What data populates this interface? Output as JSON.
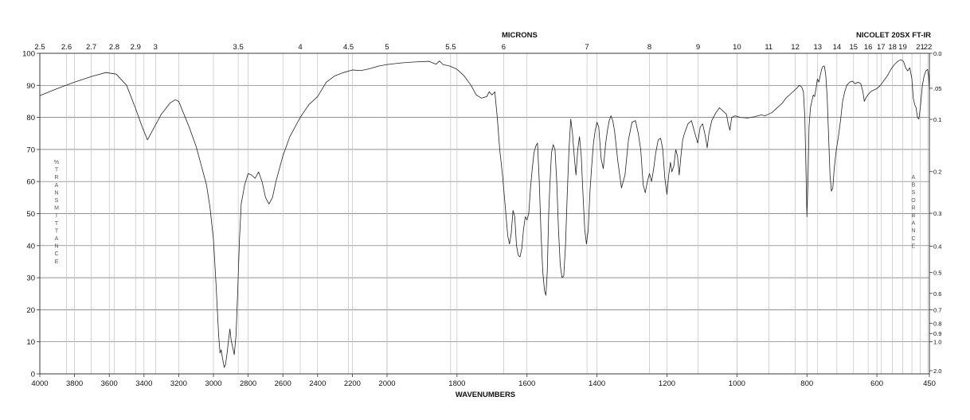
{
  "chart_data": {
    "type": "line",
    "instrument": "NICOLET 20SX FT-IR",
    "xlabel": "WAVENUMBERS",
    "xlabel_top": "MICRONS",
    "ylabel_left": "% TRANSMITTANCE",
    "ylabel_left_letters": [
      "%",
      "T",
      "R",
      "A",
      "N",
      "S",
      "M",
      "I",
      "T",
      "T",
      "A",
      "N",
      "C",
      "E"
    ],
    "ylabel_right_letters": [
      "A",
      "B",
      "S",
      "O",
      "R",
      "B",
      "A",
      "N",
      "C",
      "E"
    ],
    "xlim": [
      4000,
      450
    ],
    "ylim": [
      0,
      100
    ],
    "x_scale": "two-segment linear (4000-2000 and 2000-450 cm-1)",
    "grid": true,
    "x_ticks": [
      "4000",
      "3800",
      "3600",
      "3400",
      "3200",
      "3000",
      "2800",
      "2600",
      "2400",
      "2200",
      "2000",
      "1800",
      "1600",
      "1400",
      "1200",
      "1000",
      "800",
      "600",
      "450"
    ],
    "y_ticks": [
      "0",
      "10",
      "20",
      "30",
      "40",
      "50",
      "60",
      "70",
      "80",
      "90",
      "100"
    ],
    "micron_ticks": [
      {
        "label": "2.5",
        "um": 2.5
      },
      {
        "label": "2.6",
        "um": 2.6
      },
      {
        "label": "2.7",
        "um": 2.7
      },
      {
        "label": "2.8",
        "um": 2.8
      },
      {
        "label": "2.9",
        "um": 2.9
      },
      {
        "label": "3",
        "um": 3.0
      },
      {
        "label": "3.5",
        "um": 3.5
      },
      {
        "label": "4",
        "um": 4.0
      },
      {
        "label": "4.5",
        "um": 4.5
      },
      {
        "label": "5",
        "um": 5.0
      },
      {
        "label": "5.5",
        "um": 5.5
      },
      {
        "label": "6",
        "um": 6.0
      },
      {
        "label": "7",
        "um": 7.0
      },
      {
        "label": "8",
        "um": 8.0
      },
      {
        "label": "9",
        "um": 9.0
      },
      {
        "label": "10",
        "um": 10.0
      },
      {
        "label": "11",
        "um": 11.0
      },
      {
        "label": "12",
        "um": 12.0
      },
      {
        "label": "13",
        "um": 13.0
      },
      {
        "label": "14",
        "um": 14.0
      },
      {
        "label": "15",
        "um": 15.0
      },
      {
        "label": "16",
        "um": 16.0
      },
      {
        "label": "17",
        "um": 17.0
      },
      {
        "label": "18",
        "um": 18.0
      },
      {
        "label": "19",
        "um": 19.0
      },
      {
        "label": "21",
        "um": 21.0
      },
      {
        "label": "22",
        "um": 22.0
      }
    ],
    "absorbance_ticks": [
      {
        "label": "0.0",
        "T": 100
      },
      {
        "label": ".05",
        "T": 89.1
      },
      {
        "label": "0.1",
        "T": 79.4
      },
      {
        "label": "0.2",
        "T": 63.1
      },
      {
        "label": "0.3",
        "T": 50.1
      },
      {
        "label": "0.4",
        "T": 39.8
      },
      {
        "label": "0.5",
        "T": 31.6
      },
      {
        "label": "0.6",
        "T": 25.1
      },
      {
        "label": "0.7",
        "T": 20.0
      },
      {
        "label": "0.8",
        "T": 15.8
      },
      {
        "label": "0.9",
        "T": 12.6
      },
      {
        "label": "1.0",
        "T": 10.0
      },
      {
        "label": "2.0",
        "T": 1.0
      }
    ],
    "series": [
      {
        "color": "#222222",
        "points": [
          [
            4000,
            86.8
          ],
          [
            3900,
            89
          ],
          [
            3800,
            91
          ],
          [
            3700,
            92.8
          ],
          [
            3620,
            94
          ],
          [
            3560,
            93.5
          ],
          [
            3500,
            90
          ],
          [
            3450,
            83
          ],
          [
            3410,
            77
          ],
          [
            3380,
            73
          ],
          [
            3350,
            76
          ],
          [
            3300,
            81
          ],
          [
            3250,
            84.5
          ],
          [
            3220,
            85.5
          ],
          [
            3200,
            85
          ],
          [
            3170,
            81
          ],
          [
            3140,
            77
          ],
          [
            3100,
            71
          ],
          [
            3070,
            65
          ],
          [
            3040,
            59
          ],
          [
            3020,
            52
          ],
          [
            3000,
            42
          ],
          [
            2985,
            28
          ],
          [
            2970,
            12
          ],
          [
            2962,
            6.5
          ],
          [
            2955,
            7.5
          ],
          [
            2948,
            5
          ],
          [
            2938,
            2
          ],
          [
            2930,
            3
          ],
          [
            2920,
            7
          ],
          [
            2912,
            11
          ],
          [
            2905,
            14
          ],
          [
            2898,
            10.5
          ],
          [
            2890,
            8.5
          ],
          [
            2880,
            6
          ],
          [
            2870,
            12
          ],
          [
            2860,
            26
          ],
          [
            2850,
            42
          ],
          [
            2840,
            53
          ],
          [
            2820,
            59
          ],
          [
            2800,
            62.5
          ],
          [
            2780,
            62
          ],
          [
            2760,
            61
          ],
          [
            2740,
            63
          ],
          [
            2720,
            60
          ],
          [
            2700,
            55
          ],
          [
            2680,
            53
          ],
          [
            2660,
            55
          ],
          [
            2640,
            60
          ],
          [
            2600,
            68
          ],
          [
            2560,
            74
          ],
          [
            2500,
            80
          ],
          [
            2450,
            84
          ],
          [
            2400,
            86.5
          ],
          [
            2350,
            91
          ],
          [
            2300,
            93
          ],
          [
            2250,
            94
          ],
          [
            2200,
            94.8
          ],
          [
            2150,
            94.6
          ],
          [
            2100,
            95.2
          ],
          [
            2050,
            96
          ],
          [
            2000,
            96.5
          ],
          [
            1960,
            97
          ],
          [
            1920,
            97.3
          ],
          [
            1880,
            97.5
          ],
          [
            1860,
            96.6
          ],
          [
            1850,
            97.6
          ],
          [
            1840,
            96.5
          ],
          [
            1820,
            96
          ],
          [
            1800,
            95
          ],
          [
            1780,
            93
          ],
          [
            1760,
            90
          ],
          [
            1745,
            87
          ],
          [
            1730,
            86
          ],
          [
            1715,
            86.5
          ],
          [
            1708,
            88
          ],
          [
            1700,
            87
          ],
          [
            1692,
            88
          ],
          [
            1685,
            80
          ],
          [
            1678,
            70
          ],
          [
            1670,
            62
          ],
          [
            1662,
            52
          ],
          [
            1655,
            43
          ],
          [
            1650,
            40.5
          ],
          [
            1645,
            44
          ],
          [
            1640,
            51
          ],
          [
            1635,
            49
          ],
          [
            1630,
            40
          ],
          [
            1625,
            37
          ],
          [
            1620,
            36.5
          ],
          [
            1615,
            39
          ],
          [
            1610,
            45
          ],
          [
            1605,
            49
          ],
          [
            1600,
            48
          ],
          [
            1595,
            50
          ],
          [
            1590,
            58
          ],
          [
            1585,
            64
          ],
          [
            1580,
            69
          ],
          [
            1575,
            71
          ],
          [
            1570,
            72
          ],
          [
            1565,
            60
          ],
          [
            1560,
            44
          ],
          [
            1555,
            32
          ],
          [
            1550,
            26
          ],
          [
            1546,
            24.5
          ],
          [
            1542,
            32
          ],
          [
            1538,
            50
          ],
          [
            1535,
            58
          ],
          [
            1530,
            69
          ],
          [
            1525,
            71.5
          ],
          [
            1520,
            70
          ],
          [
            1515,
            60
          ],
          [
            1510,
            45
          ],
          [
            1505,
            34
          ],
          [
            1500,
            30
          ],
          [
            1495,
            30.5
          ],
          [
            1490,
            40
          ],
          [
            1485,
            56
          ],
          [
            1480,
            70
          ],
          [
            1475,
            79.5
          ],
          [
            1470,
            75
          ],
          [
            1465,
            68
          ],
          [
            1460,
            62
          ],
          [
            1455,
            70
          ],
          [
            1450,
            74
          ],
          [
            1445,
            68
          ],
          [
            1440,
            56
          ],
          [
            1435,
            45
          ],
          [
            1430,
            40.5
          ],
          [
            1425,
            45
          ],
          [
            1420,
            57
          ],
          [
            1415,
            65
          ],
          [
            1410,
            72
          ],
          [
            1405,
            76
          ],
          [
            1400,
            78.5
          ],
          [
            1395,
            77
          ],
          [
            1388,
            67
          ],
          [
            1382,
            64
          ],
          [
            1375,
            72
          ],
          [
            1370,
            76
          ],
          [
            1365,
            79
          ],
          [
            1360,
            80.5
          ],
          [
            1355,
            79
          ],
          [
            1350,
            76
          ],
          [
            1345,
            71
          ],
          [
            1340,
            66
          ],
          [
            1335,
            62
          ],
          [
            1330,
            58
          ],
          [
            1320,
            62
          ],
          [
            1310,
            73
          ],
          [
            1300,
            78.5
          ],
          [
            1290,
            79
          ],
          [
            1282,
            75
          ],
          [
            1275,
            70
          ],
          [
            1268,
            59
          ],
          [
            1262,
            56.5
          ],
          [
            1256,
            60
          ],
          [
            1250,
            62.5
          ],
          [
            1244,
            60
          ],
          [
            1238,
            64
          ],
          [
            1232,
            69
          ],
          [
            1225,
            73
          ],
          [
            1218,
            73.5
          ],
          [
            1212,
            70
          ],
          [
            1206,
            61
          ],
          [
            1200,
            56
          ],
          [
            1195,
            62
          ],
          [
            1190,
            66
          ],
          [
            1186,
            63
          ],
          [
            1180,
            65
          ],
          [
            1175,
            70
          ],
          [
            1170,
            68
          ],
          [
            1165,
            62
          ],
          [
            1160,
            68
          ],
          [
            1155,
            73
          ],
          [
            1150,
            75
          ],
          [
            1140,
            78
          ],
          [
            1130,
            79
          ],
          [
            1120,
            75
          ],
          [
            1112,
            72
          ],
          [
            1105,
            77
          ],
          [
            1098,
            78
          ],
          [
            1090,
            74
          ],
          [
            1085,
            70.5
          ],
          [
            1080,
            75
          ],
          [
            1072,
            79
          ],
          [
            1060,
            81.5
          ],
          [
            1050,
            83
          ],
          [
            1040,
            82
          ],
          [
            1030,
            81
          ],
          [
            1025,
            78
          ],
          [
            1020,
            76
          ],
          [
            1015,
            80
          ],
          [
            1005,
            80.5
          ],
          [
            990,
            80
          ],
          [
            970,
            79.8
          ],
          [
            950,
            80.2
          ],
          [
            930,
            80.8
          ],
          [
            920,
            80.5
          ],
          [
            910,
            81
          ],
          [
            900,
            81.5
          ],
          [
            890,
            82.5
          ],
          [
            880,
            83.5
          ],
          [
            870,
            84.5
          ],
          [
            860,
            86
          ],
          [
            850,
            87
          ],
          [
            840,
            88
          ],
          [
            830,
            89
          ],
          [
            822,
            90
          ],
          [
            815,
            89.5
          ],
          [
            810,
            88
          ],
          [
            806,
            80
          ],
          [
            803,
            65
          ],
          [
            800,
            49
          ],
          [
            797,
            60
          ],
          [
            794,
            77
          ],
          [
            790,
            83
          ],
          [
            786,
            85
          ],
          [
            782,
            87
          ],
          [
            778,
            86.5
          ],
          [
            774,
            89
          ],
          [
            770,
            92
          ],
          [
            766,
            91
          ],
          [
            762,
            93
          ],
          [
            758,
            95
          ],
          [
            754,
            96
          ],
          [
            750,
            96
          ],
          [
            746,
            93
          ],
          [
            742,
            86
          ],
          [
            738,
            74
          ],
          [
            734,
            62
          ],
          [
            730,
            57
          ],
          [
            726,
            58
          ],
          [
            722,
            64
          ],
          [
            716,
            70
          ],
          [
            710,
            74
          ],
          [
            704,
            79
          ],
          [
            698,
            85
          ],
          [
            692,
            88
          ],
          [
            686,
            90
          ],
          [
            678,
            91
          ],
          [
            670,
            91.3
          ],
          [
            662,
            90.5
          ],
          [
            654,
            91
          ],
          [
            646,
            90.5
          ],
          [
            640,
            88
          ],
          [
            636,
            85
          ],
          [
            632,
            86
          ],
          [
            626,
            87
          ],
          [
            618,
            88
          ],
          [
            610,
            88.5
          ],
          [
            600,
            89
          ],
          [
            590,
            90
          ],
          [
            580,
            91.5
          ],
          [
            570,
            93
          ],
          [
            560,
            95
          ],
          [
            550,
            96.5
          ],
          [
            540,
            97.5
          ],
          [
            532,
            98
          ],
          [
            524,
            97.5
          ],
          [
            518,
            95.5
          ],
          [
            512,
            94.5
          ],
          [
            506,
            95.5
          ],
          [
            500,
            92
          ],
          [
            496,
            86
          ],
          [
            492,
            84
          ],
          [
            488,
            83
          ],
          [
            484,
            80
          ],
          [
            480,
            79.5
          ],
          [
            476,
            83
          ],
          [
            470,
            90
          ],
          [
            465,
            93
          ],
          [
            460,
            94.5
          ],
          [
            455,
            95
          ],
          [
            452,
            93
          ],
          [
            450,
            88.5
          ]
        ]
      }
    ]
  }
}
